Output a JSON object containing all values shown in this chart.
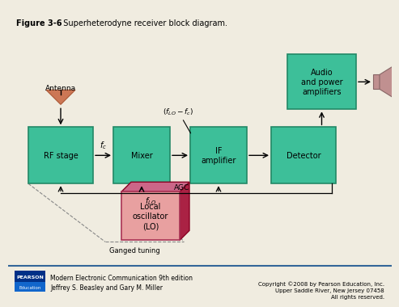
{
  "title_bold": "Figure 3-6",
  "title_rest": "  Superheterodyne receiver block diagram.",
  "bg_color": "#f0ece0",
  "block_color": "#3dbf99",
  "lo_face_color": "#e8a0a0",
  "lo_side_color": "#aa2244",
  "lo_top_color": "#cc6688",
  "speaker_color": "#c09090",
  "antenna_color": "#cc7755",
  "footer_left1": "Modern Electronic Communication 9th edition",
  "footer_left2": "Jeffrey S. Beasley and Gary M. Miller",
  "footer_right": "Copyright ©2008 by Pearson Education, Inc.\nUpper Saddle River, New Jersey 07458\nAll rights reserved.",
  "pearson_bg": "#003087",
  "education_bg": "#1166cc",
  "block_edge": "#228866"
}
